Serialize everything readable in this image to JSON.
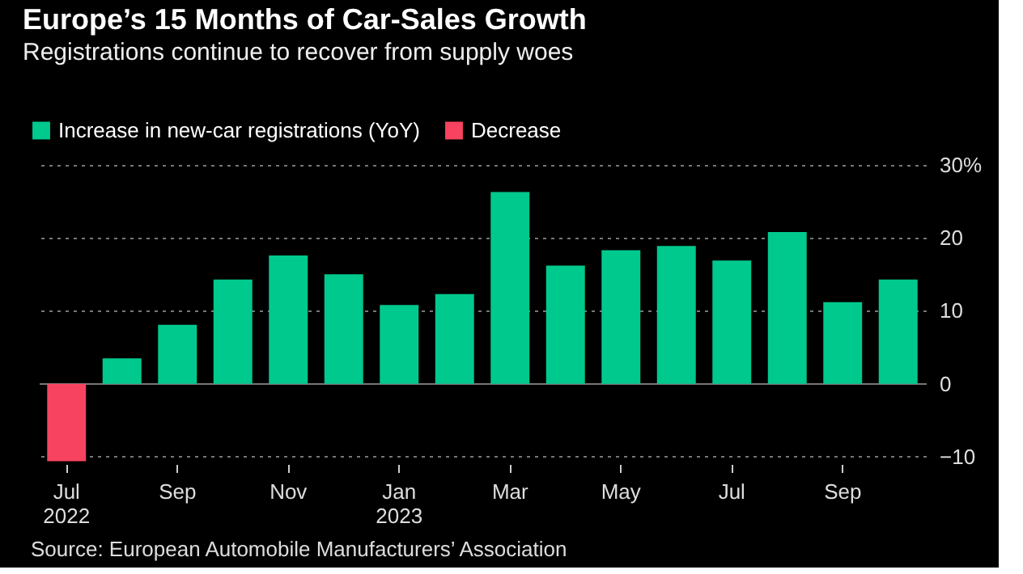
{
  "chart_data": {
    "type": "bar",
    "title": "Europe’s 15 Months of Car-Sales Growth",
    "subtitle": "Registrations continue to recover from supply woes",
    "categories": [
      "Jul 2022",
      null,
      "Sep",
      null,
      "Nov",
      null,
      "Jan 2023",
      null,
      "Mar",
      null,
      "May",
      null,
      "Jul",
      null,
      "Sep",
      null
    ],
    "series": [
      {
        "name": "Increase in new-car registrations (YoY)",
        "color": "#00c98d",
        "values": [
          null,
          3.5,
          8.1,
          14.3,
          17.6,
          15.0,
          10.8,
          12.3,
          26.3,
          16.2,
          18.3,
          18.9,
          16.9,
          20.8,
          11.2,
          14.3
        ]
      },
      {
        "name": "Decrease",
        "color": "#f7435f",
        "values": [
          -10.6,
          null,
          null,
          null,
          null,
          null,
          null,
          null,
          null,
          null,
          null,
          null,
          null,
          null,
          null,
          null
        ]
      }
    ],
    "ylim": [
      -11,
      30
    ],
    "yticks": [
      -10,
      0,
      10,
      20,
      {
        "value": 30,
        "label": "30%"
      }
    ],
    "grid": "y",
    "legend": "top left",
    "annotations": [
      "Source: European Automobile Manufacturers’ Association"
    ]
  }
}
